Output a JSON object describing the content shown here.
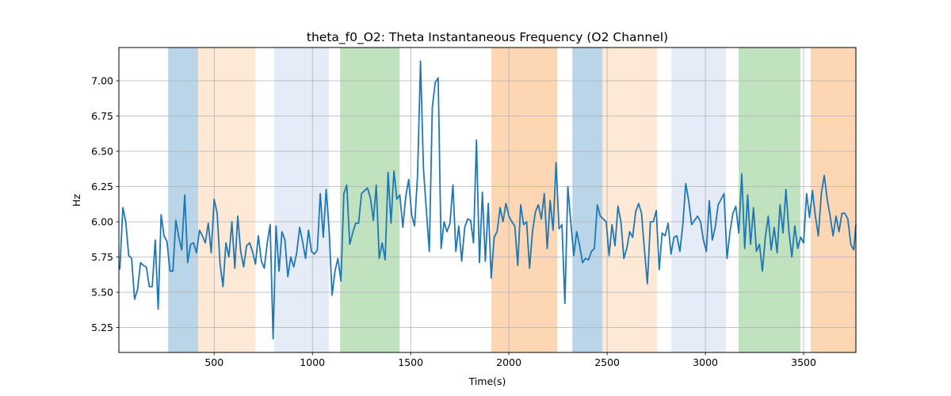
{
  "chart_data": {
    "type": "line",
    "title": "theta_f0_O2: Theta Instantaneous Frequency (O2 Channel)",
    "xlabel": "Time(s)",
    "ylabel": "Hz",
    "xlim": [
      15,
      3766
    ],
    "ylim": [
      5.073,
      7.236
    ],
    "grid": true,
    "x_ticks": [
      500,
      1000,
      1500,
      2000,
      2500,
      3000,
      3500
    ],
    "x_tick_labels": [
      "500",
      "1000",
      "1500",
      "2000",
      "2500",
      "3000",
      "3500"
    ],
    "y_ticks": [
      5.25,
      5.5,
      5.75,
      6.0,
      6.25,
      6.5,
      6.75,
      7.0
    ],
    "y_tick_labels": [
      "5.25",
      "5.50",
      "5.75",
      "6.00",
      "6.25",
      "6.50",
      "6.75",
      "7.00"
    ],
    "series": [
      {
        "name": "theta_f0_O2",
        "color": "#1f77b4",
        "x_start": 20,
        "x_step": 15,
        "values": [
          5.66,
          6.1,
          6.0,
          5.76,
          5.74,
          5.45,
          5.52,
          5.71,
          5.69,
          5.68,
          5.54,
          5.54,
          5.87,
          5.38,
          6.05,
          5.9,
          5.86,
          5.65,
          5.65,
          6.01,
          5.89,
          5.8,
          6.19,
          5.71,
          5.84,
          5.85,
          5.78,
          5.94,
          5.9,
          5.85,
          5.99,
          5.78,
          6.16,
          6.06,
          5.7,
          5.54,
          5.85,
          5.75,
          6.0,
          5.67,
          6.04,
          5.79,
          5.68,
          5.83,
          5.85,
          5.79,
          5.7,
          5.9,
          5.72,
          5.67,
          5.85,
          5.98,
          5.17,
          5.97,
          5.65,
          5.93,
          5.87,
          5.61,
          5.75,
          5.68,
          5.78,
          5.96,
          5.86,
          5.74,
          5.94,
          5.79,
          5.77,
          5.8,
          6.2,
          5.89,
          6.23,
          5.94,
          5.48,
          5.65,
          5.74,
          5.58,
          6.2,
          6.26,
          5.84,
          5.92,
          5.99,
          5.99,
          6.2,
          6.22,
          6.24,
          6.17,
          6.01,
          6.26,
          5.74,
          5.85,
          5.73,
          6.35,
          5.99,
          6.36,
          6.16,
          6.19,
          5.96,
          6.18,
          6.3,
          6.05,
          5.97,
          6.33,
          7.14,
          6.38,
          6.08,
          5.79,
          6.81,
          6.99,
          7.02,
          5.81,
          6.0,
          5.93,
          5.99,
          6.26,
          5.79,
          5.97,
          5.72,
          5.96,
          6.02,
          6.01,
          5.85,
          6.58,
          5.71,
          6.21,
          5.72,
          6.13,
          5.6,
          5.89,
          5.93,
          6.1,
          6.0,
          6.13,
          6.04,
          6.0,
          5.97,
          5.69,
          6.12,
          5.98,
          6.0,
          5.67,
          5.93,
          6.07,
          6.12,
          6.02,
          6.2,
          5.81,
          6.15,
          5.94,
          6.42,
          5.95,
          5.98,
          5.42,
          6.25,
          6.0,
          5.76,
          5.93,
          5.83,
          5.71,
          5.74,
          5.73,
          5.79,
          5.81,
          6.12,
          6.04,
          6.02,
          6.0,
          5.76,
          5.98,
          5.83,
          6.11,
          6.0,
          5.74,
          5.81,
          5.93,
          5.89,
          6.07,
          6.13,
          6.06,
          5.8,
          5.56,
          6.0,
          6.0,
          6.08,
          5.66,
          5.92,
          5.9,
          5.99,
          5.77,
          5.89,
          5.9,
          5.79,
          5.98,
          6.27,
          6.15,
          5.98,
          6.01,
          6.04,
          6.0,
          5.87,
          5.79,
          6.15,
          5.87,
          5.96,
          6.12,
          6.16,
          6.2,
          5.74,
          5.93,
          6.06,
          6.11,
          5.92,
          6.34,
          5.81,
          6.19,
          5.84,
          6.1,
          5.79,
          5.84,
          5.65,
          5.89,
          6.04,
          5.8,
          5.96,
          5.78,
          6.12,
          5.92,
          6.23,
          5.93,
          5.75,
          5.97,
          5.81,
          5.89,
          5.85,
          6.2,
          6.03,
          6.22,
          6.04,
          5.9,
          6.2,
          6.33,
          6.16,
          6.04,
          5.9,
          6.04,
          5.93,
          6.06,
          6.06,
          6.02,
          5.84,
          5.8,
          5.98
        ]
      }
    ],
    "shaded_spans": [
      {
        "start": 266,
        "end": 419,
        "color": "#bad5e8"
      },
      {
        "start": 419,
        "end": 710,
        "color": "#fee9d6"
      },
      {
        "start": 806,
        "end": 1085,
        "color": "#e5ecf7"
      },
      {
        "start": 1141,
        "end": 1444,
        "color": "#c0e2bf"
      },
      {
        "start": 1911,
        "end": 2246,
        "color": "#fdd7b3"
      },
      {
        "start": 2323,
        "end": 2476,
        "color": "#bad5e8"
      },
      {
        "start": 2476,
        "end": 2754,
        "color": "#fee9d6"
      },
      {
        "start": 2827,
        "end": 3105,
        "color": "#e5ecf7"
      },
      {
        "start": 3169,
        "end": 3484,
        "color": "#c0e2bf"
      },
      {
        "start": 3536,
        "end": 3766,
        "color": "#fdd7b3"
      }
    ]
  }
}
